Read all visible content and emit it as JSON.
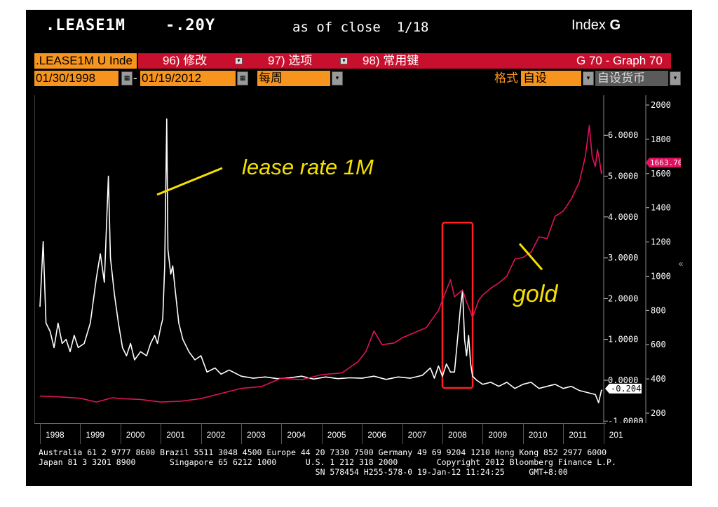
{
  "header": {
    "ticker": ".LEASE1M    -.20Y",
    "as_of": "as of close  1/18",
    "index_label": "Index",
    "index_letter": "G"
  },
  "toolbar": {
    "security_field": ".LEASE1M U Inde",
    "menu_96": "96) 修改",
    "menu_97": "97) 选项",
    "menu_98": "98) 常用键",
    "graph_id": "G 70 - Graph 70",
    "start_date": "01/30/1998",
    "end_date": "01/19/2012",
    "frequency": "每周",
    "format_label": "格式",
    "format_value": "自设",
    "currency_value": "自设货币",
    "date_separator": "-"
  },
  "chart_data": {
    "type": "line",
    "x_ticks": [
      "1998",
      "1999",
      "2000",
      "2001",
      "2002",
      "2003",
      "2004",
      "2005",
      "2006",
      "2007",
      "2008",
      "2009",
      "2010",
      "2011",
      "201"
    ],
    "left_axis": {
      "ticks": [
        "6.0000",
        "5.0000",
        "4.0000",
        "3.0000",
        "2.0000",
        "1.0000",
        "0.0000",
        "-1.0000"
      ],
      "range": [
        -1.0,
        6.6
      ]
    },
    "right_axis": {
      "ticks": [
        "2000",
        "1800",
        "1600",
        "1400",
        "1200",
        "1000",
        "800",
        "600",
        "400",
        "200"
      ],
      "range": [
        200,
        2000
      ]
    },
    "last_value_lease": "-0.2047",
    "last_value_gold": "1663.70",
    "annotations": {
      "lease": "lease rate 1M",
      "gold": "gold"
    },
    "highlight": {
      "x_range": [
        2008.0,
        2008.75
      ]
    },
    "colors": {
      "lease": "#ffffff",
      "gold": "#e0115f",
      "annotation": "#f5e000",
      "box": "#ff2020"
    },
    "series": [
      {
        "key": "lease",
        "axis": "left",
        "points": [
          [
            1998.0,
            1.8
          ],
          [
            1998.08,
            3.4
          ],
          [
            1998.15,
            1.4
          ],
          [
            1998.25,
            1.2
          ],
          [
            1998.35,
            0.8
          ],
          [
            1998.45,
            1.4
          ],
          [
            1998.55,
            0.9
          ],
          [
            1998.65,
            1.0
          ],
          [
            1998.75,
            0.7
          ],
          [
            1998.85,
            1.1
          ],
          [
            1998.95,
            0.8
          ],
          [
            1999.1,
            0.9
          ],
          [
            1999.25,
            1.4
          ],
          [
            1999.4,
            2.5
          ],
          [
            1999.5,
            3.1
          ],
          [
            1999.6,
            2.4
          ],
          [
            1999.7,
            5.0
          ],
          [
            1999.75,
            3.0
          ],
          [
            1999.85,
            2.1
          ],
          [
            1999.95,
            1.4
          ],
          [
            2000.05,
            0.8
          ],
          [
            2000.15,
            0.6
          ],
          [
            2000.25,
            0.9
          ],
          [
            2000.35,
            0.5
          ],
          [
            2000.5,
            0.7
          ],
          [
            2000.65,
            0.6
          ],
          [
            2000.75,
            0.9
          ],
          [
            2000.85,
            1.1
          ],
          [
            2000.92,
            0.9
          ],
          [
            2001.0,
            1.3
          ],
          [
            2001.05,
            1.5
          ],
          [
            2001.1,
            2.8
          ],
          [
            2001.15,
            6.4
          ],
          [
            2001.18,
            3.2
          ],
          [
            2001.25,
            2.6
          ],
          [
            2001.3,
            2.8
          ],
          [
            2001.35,
            2.3
          ],
          [
            2001.45,
            1.4
          ],
          [
            2001.55,
            1.0
          ],
          [
            2001.7,
            0.7
          ],
          [
            2001.85,
            0.5
          ],
          [
            2002.0,
            0.6
          ],
          [
            2002.15,
            0.2
          ],
          [
            2002.35,
            0.3
          ],
          [
            2002.5,
            0.15
          ],
          [
            2002.7,
            0.25
          ],
          [
            2003.0,
            0.1
          ],
          [
            2003.3,
            0.05
          ],
          [
            2003.6,
            0.08
          ],
          [
            2003.9,
            0.04
          ],
          [
            2004.2,
            0.06
          ],
          [
            2004.5,
            0.1
          ],
          [
            2004.8,
            0.03
          ],
          [
            2005.1,
            0.08
          ],
          [
            2005.4,
            0.04
          ],
          [
            2005.7,
            0.06
          ],
          [
            2006.0,
            0.05
          ],
          [
            2006.3,
            0.1
          ],
          [
            2006.6,
            0.02
          ],
          [
            2006.9,
            0.08
          ],
          [
            2007.2,
            0.05
          ],
          [
            2007.5,
            0.12
          ],
          [
            2007.7,
            0.3
          ],
          [
            2007.8,
            0.05
          ],
          [
            2007.9,
            0.35
          ],
          [
            2008.0,
            0.1
          ],
          [
            2008.1,
            0.4
          ],
          [
            2008.2,
            0.2
          ],
          [
            2008.3,
            0.2
          ],
          [
            2008.45,
            1.8
          ],
          [
            2008.5,
            2.2
          ],
          [
            2008.55,
            1.0
          ],
          [
            2008.6,
            0.6
          ],
          [
            2008.65,
            1.1
          ],
          [
            2008.7,
            0.4
          ],
          [
            2008.75,
            0.1
          ],
          [
            2008.85,
            0.0
          ],
          [
            2009.0,
            -0.1
          ],
          [
            2009.2,
            -0.05
          ],
          [
            2009.4,
            -0.15
          ],
          [
            2009.6,
            -0.05
          ],
          [
            2009.8,
            -0.2
          ],
          [
            2010.0,
            -0.1
          ],
          [
            2010.2,
            -0.05
          ],
          [
            2010.4,
            -0.2
          ],
          [
            2010.6,
            -0.15
          ],
          [
            2010.8,
            -0.1
          ],
          [
            2011.0,
            -0.2
          ],
          [
            2011.2,
            -0.15
          ],
          [
            2011.4,
            -0.25
          ],
          [
            2011.6,
            -0.3
          ],
          [
            2011.8,
            -0.35
          ],
          [
            2011.88,
            -0.55
          ],
          [
            2011.95,
            -0.25
          ],
          [
            2012.05,
            -0.2
          ]
        ]
      },
      {
        "key": "gold",
        "axis": "right",
        "points": [
          [
            1998.0,
            300
          ],
          [
            1998.5,
            295
          ],
          [
            1999.0,
            287
          ],
          [
            1999.4,
            265
          ],
          [
            1999.8,
            290
          ],
          [
            2000.0,
            285
          ],
          [
            2000.5,
            280
          ],
          [
            2001.0,
            265
          ],
          [
            2001.5,
            270
          ],
          [
            2002.0,
            285
          ],
          [
            2002.5,
            315
          ],
          [
            2003.0,
            345
          ],
          [
            2003.5,
            355
          ],
          [
            2004.0,
            405
          ],
          [
            2004.5,
            395
          ],
          [
            2005.0,
            425
          ],
          [
            2005.5,
            435
          ],
          [
            2005.9,
            500
          ],
          [
            2006.1,
            560
          ],
          [
            2006.3,
            680
          ],
          [
            2006.5,
            600
          ],
          [
            2006.8,
            610
          ],
          [
            2007.0,
            640
          ],
          [
            2007.3,
            670
          ],
          [
            2007.6,
            700
          ],
          [
            2007.9,
            800
          ],
          [
            2008.1,
            920
          ],
          [
            2008.2,
            980
          ],
          [
            2008.3,
            880
          ],
          [
            2008.5,
            920
          ],
          [
            2008.6,
            850
          ],
          [
            2008.75,
            760
          ],
          [
            2008.9,
            860
          ],
          [
            2009.0,
            890
          ],
          [
            2009.2,
            930
          ],
          [
            2009.4,
            960
          ],
          [
            2009.6,
            1000
          ],
          [
            2009.8,
            1100
          ],
          [
            2010.0,
            1110
          ],
          [
            2010.2,
            1140
          ],
          [
            2010.4,
            1230
          ],
          [
            2010.6,
            1220
          ],
          [
            2010.8,
            1350
          ],
          [
            2011.0,
            1380
          ],
          [
            2011.2,
            1450
          ],
          [
            2011.4,
            1550
          ],
          [
            2011.55,
            1700
          ],
          [
            2011.65,
            1880
          ],
          [
            2011.72,
            1700
          ],
          [
            2011.8,
            1640
          ],
          [
            2011.85,
            1740
          ],
          [
            2011.9,
            1680
          ],
          [
            2011.95,
            1600
          ],
          [
            2012.05,
            1663.7
          ]
        ]
      }
    ]
  },
  "footer": {
    "line1": "Australia 61 2 9777 8600 Brazil 5511 3048 4500 Europe 44 20 7330 7500 Germany 49 69 9204 1210 Hong Kong 852 2977 6000",
    "line2": "Japan 81 3 3201 8900       Singapore 65 6212 1000      U.S. 1 212 318 2000        Copyright 2012 Bloomberg Finance L.P.",
    "line3": "                                                         SN 578454 H255-578-0 19-Jan-12 11:24:25     GMT+8:00"
  }
}
